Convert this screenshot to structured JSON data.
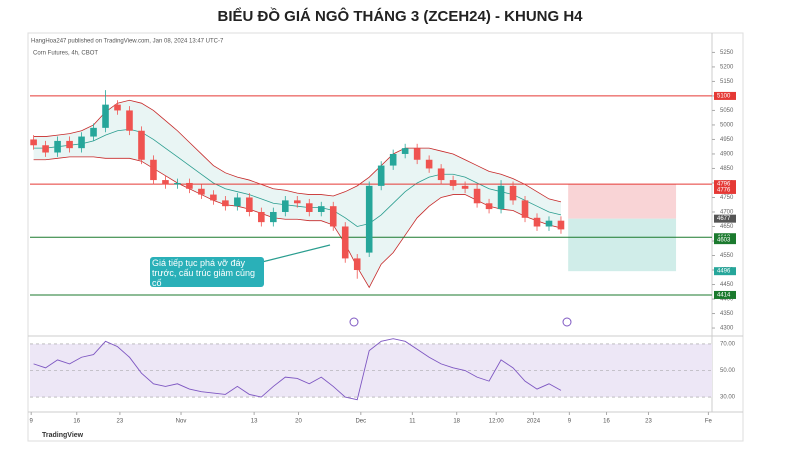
{
  "chart_data": {
    "type": "candlestick",
    "title": "BIỂU ĐỒ GIÁ NGÔ THÁNG 3 (ZCEH24) - KHUNG H4",
    "publisher": "HangHoa247 published on TradingView.com, Jan 08, 2024 13:47 UTC-7",
    "symbol": "Corn Futures, 4h, CBOT",
    "annotation": "Giá tiếp tục phá vỡ đáy trước, cấu trúc giảm củng cố",
    "logo": "TradingView",
    "colors": {
      "up": "#26a69a",
      "down": "#ef5350",
      "band": "#2a9d8f",
      "rsi": "#7e57c2"
    },
    "open": [
      4950,
      4930,
      4905,
      4945,
      4920,
      4960,
      4990,
      5070,
      5050,
      4980,
      4880,
      4810,
      4795,
      4800,
      4780,
      4760,
      4740,
      4720,
      4750,
      4700,
      4665,
      4700,
      4740,
      4730,
      4700,
      4720,
      4650,
      4540,
      4560,
      4790,
      4860,
      4900,
      4920,
      4880,
      4850,
      4810,
      4790,
      4780,
      4730,
      4710,
      4790,
      4740,
      4680,
      4650,
      4670
    ],
    "high": [
      4965,
      4945,
      4960,
      4960,
      4975,
      5005,
      5120,
      5085,
      5065,
      4995,
      4895,
      4825,
      4815,
      4815,
      4795,
      4775,
      4755,
      4765,
      4765,
      4715,
      4715,
      4755,
      4755,
      4745,
      4735,
      4735,
      4665,
      4555,
      4805,
      4875,
      4915,
      4935,
      4935,
      4895,
      4865,
      4825,
      4805,
      4795,
      4745,
      4810,
      4805,
      4755,
      4695,
      4685,
      4685
    ],
    "low": [
      4915,
      4890,
      4890,
      4905,
      4905,
      4945,
      4975,
      5035,
      4965,
      4865,
      4795,
      4780,
      4780,
      4765,
      4745,
      4725,
      4705,
      4705,
      4685,
      4650,
      4650,
      4685,
      4715,
      4685,
      4685,
      4635,
      4525,
      4470,
      4545,
      4775,
      4845,
      4885,
      4865,
      4835,
      4795,
      4775,
      4765,
      4715,
      4695,
      4695,
      4725,
      4665,
      4635,
      4635,
      4625
    ],
    "close": [
      4930,
      4905,
      4945,
      4920,
      4960,
      4990,
      5070,
      5050,
      4980,
      4880,
      4810,
      4795,
      4800,
      4780,
      4760,
      4740,
      4720,
      4750,
      4700,
      4665,
      4700,
      4740,
      4730,
      4700,
      4720,
      4650,
      4540,
      4500,
      4790,
      4860,
      4900,
      4920,
      4880,
      4850,
      4810,
      4790,
      4780,
      4730,
      4710,
      4790,
      4740,
      4680,
      4650,
      4670,
      4640
    ],
    "bb_upper": [
      4960,
      4960,
      4965,
      4970,
      4980,
      5000,
      5045,
      5075,
      5085,
      5075,
      5050,
      5015,
      4980,
      4940,
      4900,
      4860,
      4835,
      4820,
      4810,
      4795,
      4780,
      4775,
      4765,
      4760,
      4760,
      4755,
      4770,
      4790,
      4820,
      4860,
      4900,
      4920,
      4920,
      4920,
      4910,
      4900,
      4880,
      4860,
      4840,
      4830,
      4815,
      4795,
      4770,
      4745,
      4735
    ],
    "bb_middle": [
      4920,
      4920,
      4925,
      4930,
      4935,
      4945,
      4965,
      4980,
      4985,
      4975,
      4950,
      4920,
      4890,
      4860,
      4830,
      4800,
      4780,
      4770,
      4760,
      4745,
      4730,
      4725,
      4720,
      4715,
      4715,
      4705,
      4680,
      4650,
      4660,
      4690,
      4730,
      4770,
      4800,
      4820,
      4830,
      4830,
      4820,
      4800,
      4780,
      4770,
      4760,
      4740,
      4720,
      4700,
      4690
    ],
    "bb_lower": [
      4880,
      4880,
      4885,
      4890,
      4890,
      4890,
      4885,
      4885,
      4885,
      4875,
      4850,
      4825,
      4800,
      4780,
      4760,
      4740,
      4725,
      4720,
      4710,
      4695,
      4680,
      4675,
      4675,
      4670,
      4670,
      4655,
      4590,
      4510,
      4440,
      4520,
      4560,
      4620,
      4680,
      4720,
      4750,
      4760,
      4760,
      4740,
      4720,
      4710,
      4705,
      4685,
      4670,
      4655,
      4645
    ],
    "rsi": [
      55,
      52,
      58,
      55,
      60,
      62,
      72,
      68,
      60,
      48,
      40,
      38,
      40,
      36,
      34,
      33,
      32,
      38,
      32,
      30,
      38,
      45,
      44,
      40,
      45,
      38,
      30,
      28,
      65,
      72,
      74,
      72,
      66,
      60,
      55,
      52,
      50,
      45,
      42,
      58,
      52,
      42,
      36,
      40,
      35
    ],
    "xlim": [
      -0.3,
      56.6
    ],
    "xticks": [
      {
        "value": -0.2,
        "label": "9"
      },
      {
        "value": 3.6,
        "label": "16"
      },
      {
        "value": 7.2,
        "label": "23"
      },
      {
        "value": 12.3,
        "label": "Nov"
      },
      {
        "value": 18.4,
        "label": "13"
      },
      {
        "value": 22.1,
        "label": "20"
      },
      {
        "value": 27.3,
        "label": "Dec"
      },
      {
        "value": 31.6,
        "label": "11"
      },
      {
        "value": 35.3,
        "label": "18"
      },
      {
        "value": 38.6,
        "label": "12:00"
      },
      {
        "value": 41.7,
        "label": "2024"
      },
      {
        "value": 44.7,
        "label": "9"
      },
      {
        "value": 47.8,
        "label": "16"
      },
      {
        "value": 51.3,
        "label": "23"
      },
      {
        "value": 56.3,
        "label": "Fe"
      }
    ],
    "ylim": [
      4276,
      5279
    ],
    "yticks": [
      5250,
      5200,
      5150,
      5100,
      5050,
      5000,
      4950,
      4900,
      4850,
      4800,
      4750,
      4700,
      4650,
      4600,
      4550,
      4500,
      4450,
      4400,
      4350,
      4300
    ],
    "rsi_ylim": [
      22.5,
      74.5
    ],
    "rsi_yticks": [
      {
        "value": 70,
        "label": "70.00"
      },
      {
        "value": 50,
        "label": "50.00"
      },
      {
        "value": 30,
        "label": "30.00"
      }
    ],
    "levels": [
      5100,
      4796,
      4613,
      4414
    ],
    "level_colors": [
      "#e53935",
      "#e53935",
      "#1b7a2e",
      "#1b7a2e"
    ],
    "price_tags": [
      5100,
      4796,
      4776,
      4677,
      4613,
      4603,
      4496,
      4414
    ],
    "price_tag_colors": [
      "#e53935",
      "#e53935",
      "#e53935",
      "#555555",
      "#1b7a2e",
      "#1b7a2e",
      "#26a69a",
      "#1b7a2e"
    ],
    "position": {
      "entry": 4677,
      "stop": 4796,
      "target": 4496,
      "start": 44.6,
      "end": 53.6
    }
  }
}
